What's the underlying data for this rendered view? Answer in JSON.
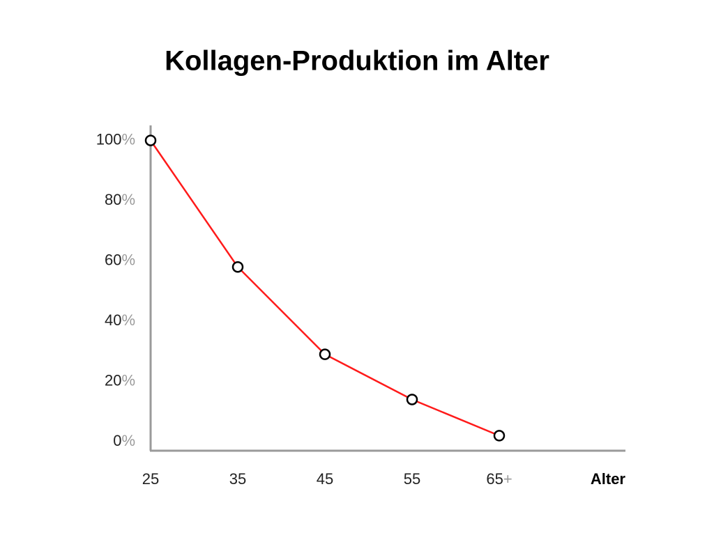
{
  "chart_data": {
    "type": "line",
    "title": "Kollagen-Produktion im Alter",
    "x_label": "Alter",
    "categories": [
      "25",
      "35",
      "45",
      "55",
      "65+"
    ],
    "series": [
      {
        "name": "Kollagen-Produktion",
        "color": "#ff1a1a",
        "values": [
          100,
          58,
          29,
          14,
          2
        ]
      }
    ],
    "ylim": [
      -3,
      105
    ],
    "yticks": [
      {
        "value": 0,
        "label": "0%"
      },
      {
        "value": 20,
        "label": "20%"
      },
      {
        "value": 40,
        "label": "40%"
      },
      {
        "value": 60,
        "label": "60%"
      },
      {
        "value": 80,
        "label": "80%"
      },
      {
        "value": 100,
        "label": "100%"
      }
    ],
    "grid": false
  }
}
